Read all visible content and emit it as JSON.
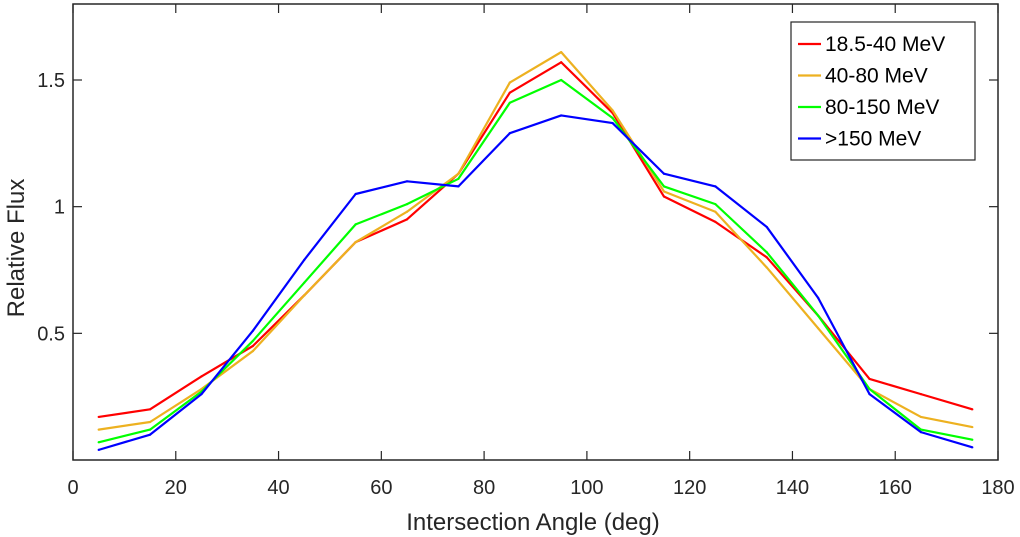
{
  "chart_data": {
    "type": "line",
    "xlabel": "Intersection Angle (deg)",
    "ylabel": "Relative Flux",
    "xlim": [
      0,
      180
    ],
    "ylim": [
      0,
      1.8
    ],
    "xticks": [
      0,
      20,
      40,
      60,
      80,
      100,
      120,
      140,
      160,
      180
    ],
    "xtick_labels": [
      "0",
      "20",
      "40",
      "60",
      "80",
      "100",
      "120",
      "140",
      "160",
      "180"
    ],
    "yticks": [
      0.5,
      1,
      1.5
    ],
    "ytick_labels": [
      "0.5",
      "1",
      "1.5"
    ],
    "grid": false,
    "legend_position": "top-right",
    "x": [
      5,
      15,
      25,
      35,
      45,
      55,
      65,
      75,
      85,
      95,
      105,
      115,
      125,
      135,
      145,
      155,
      165,
      175
    ],
    "series": [
      {
        "name": "18.5-40 MeV",
        "color": "#ff0000",
        "values": [
          0.17,
          0.2,
          0.33,
          0.45,
          0.65,
          0.86,
          0.95,
          1.13,
          1.45,
          1.57,
          1.37,
          1.04,
          0.94,
          0.8,
          0.57,
          0.32,
          0.26,
          0.2
        ]
      },
      {
        "name": "40-80 MeV",
        "color": "#edb120",
        "values": [
          0.12,
          0.15,
          0.28,
          0.43,
          0.65,
          0.86,
          0.98,
          1.13,
          1.49,
          1.61,
          1.38,
          1.06,
          0.98,
          0.76,
          0.52,
          0.28,
          0.17,
          0.13
        ]
      },
      {
        "name": "80-150 MeV",
        "color": "#00ff00",
        "values": [
          0.07,
          0.12,
          0.27,
          0.47,
          0.7,
          0.93,
          1.01,
          1.11,
          1.41,
          1.5,
          1.35,
          1.08,
          1.01,
          0.82,
          0.57,
          0.28,
          0.12,
          0.08
        ]
      },
      {
        "name": ">150 MeV",
        "color": "#0000ff",
        "values": [
          0.04,
          0.1,
          0.26,
          0.51,
          0.79,
          1.05,
          1.1,
          1.08,
          1.29,
          1.36,
          1.33,
          1.13,
          1.08,
          0.92,
          0.64,
          0.26,
          0.11,
          0.05
        ]
      }
    ]
  }
}
